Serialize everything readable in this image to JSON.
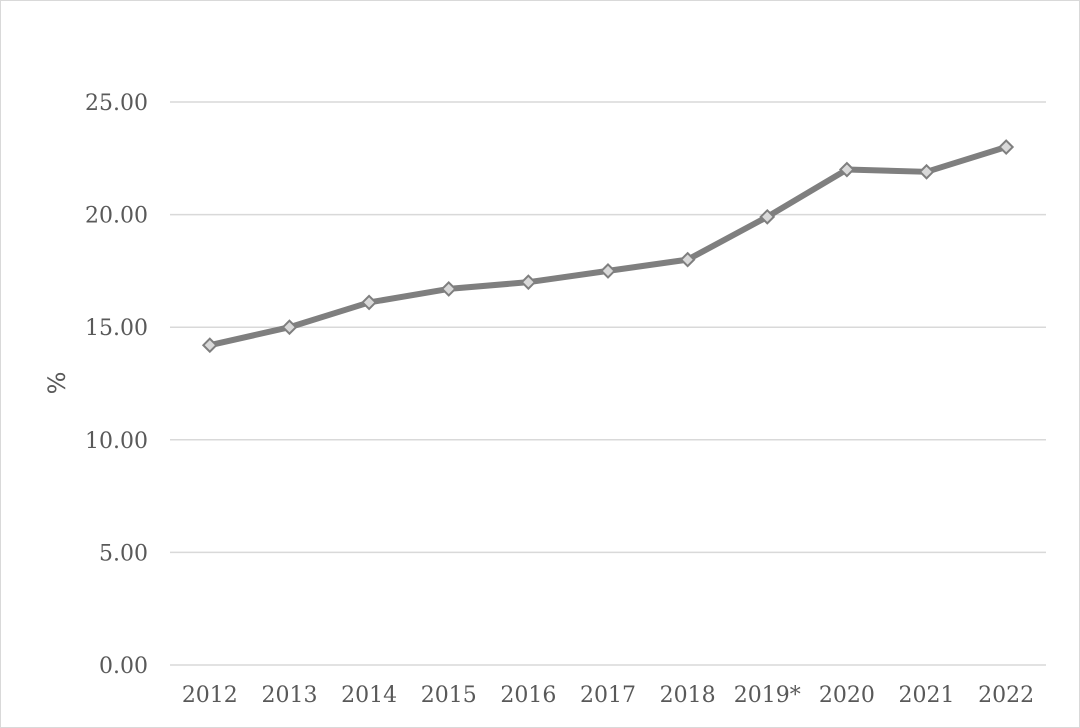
{
  "chart_data": {
    "type": "line",
    "ylabel": "%",
    "ylim": [
      0,
      25
    ],
    "yticks": [
      "0.00",
      "5.00",
      "10.00",
      "15.00",
      "20.00",
      "25.00"
    ],
    "categories": [
      "2012",
      "2013",
      "2014",
      "2015",
      "2016",
      "2017",
      "2018",
      "2019*",
      "2020",
      "2021",
      "2022"
    ],
    "series": [
      {
        "values": [
          14.2,
          15.0,
          16.1,
          16.7,
          17.0,
          17.5,
          18.0,
          19.9,
          22.0,
          21.9,
          23.0
        ],
        "color": "#7f7f7f",
        "marker": "diamond",
        "marker_fill": "#d9d9d9"
      }
    ],
    "grid": true,
    "gridline_color": "#d9d9d9",
    "legend": "none"
  }
}
